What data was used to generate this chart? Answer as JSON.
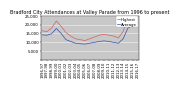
{
  "title": "Bradford City Attendances at Valley Parade from 1996 to present",
  "background_color": "#ffffff",
  "plot_bg_color": "#c8c8c8",
  "years": [
    "1996-97",
    "1997-98",
    "1998-99",
    "1999-00",
    "2000-01",
    "2001-02",
    "2002-03",
    "2003-04",
    "2004-05",
    "2005-06",
    "2006-07",
    "2007-08",
    "2008-09",
    "2009-10",
    "2010-11",
    "2011-12",
    "2012-13",
    "2013-14",
    "2014-15",
    "2015-16",
    "2016-17"
  ],
  "average": [
    14200,
    14000,
    14800,
    17800,
    15000,
    11500,
    10500,
    9500,
    9200,
    9000,
    9500,
    10000,
    10500,
    10800,
    10500,
    10000,
    9500,
    12000,
    18000,
    19500,
    19000
  ],
  "highest": [
    16500,
    16000,
    18000,
    22000,
    19000,
    15500,
    13500,
    12000,
    11500,
    11000,
    12000,
    13000,
    14000,
    14500,
    14000,
    13500,
    12500,
    16000,
    24000,
    23500,
    24500
  ],
  "average_color": "#3050b0",
  "highest_color": "#d06060",
  "avg_label": "Average",
  "high_label": "Highest",
  "ylim": [
    0,
    25000
  ],
  "yticks": [
    0,
    5000,
    10000,
    15000,
    20000,
    25000
  ],
  "title_fontsize": 3.5,
  "tick_fontsize": 2.8,
  "legend_fontsize": 2.8,
  "linewidth": 0.5
}
